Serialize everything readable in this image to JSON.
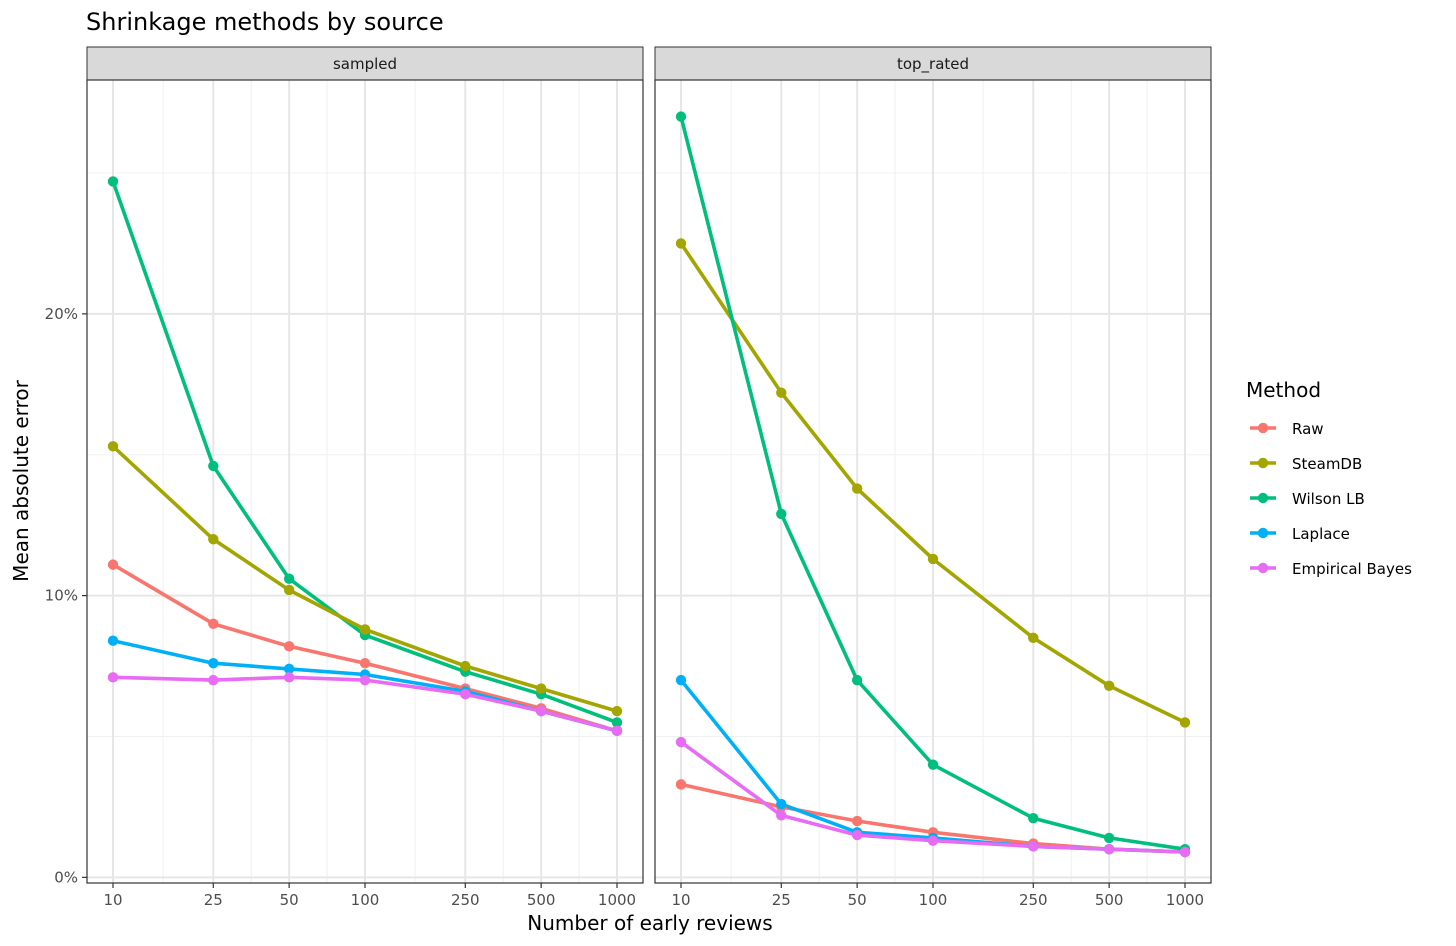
{
  "chart_data": {
    "type": "line",
    "title": "Shrinkage methods by source",
    "xlabel": "Number of early reviews",
    "ylabel": "Mean absolute error",
    "x_scale": "log10",
    "x_ticks": [
      10,
      25,
      50,
      100,
      250,
      500,
      1000
    ],
    "x_tick_labels": [
      "10",
      "25",
      "50",
      "100",
      "250",
      "500",
      "1000"
    ],
    "y_ticks": [
      0,
      0.1,
      0.2
    ],
    "y_tick_labels": [
      "0%",
      "10%",
      "20%"
    ],
    "ylim": [
      -0.002,
      0.283
    ],
    "grid": true,
    "legend": {
      "title": "Method",
      "position": "right"
    },
    "colors": {
      "Raw": "#F8766D",
      "SteamDB": "#A3A500",
      "Wilson LB": "#00BF7D",
      "Laplace": "#00B0F6",
      "Empirical Bayes": "#E76BF3"
    },
    "panels": [
      {
        "name": "sampled",
        "x": [
          10,
          25,
          50,
          100,
          250,
          500,
          1000
        ],
        "series": [
          {
            "name": "Wilson LB",
            "values": [
              0.247,
              0.146,
              0.106,
              0.086,
              0.073,
              0.065,
              0.055
            ]
          },
          {
            "name": "SteamDB",
            "values": [
              0.153,
              0.12,
              0.102,
              0.088,
              0.075,
              0.067,
              0.059
            ]
          },
          {
            "name": "Raw",
            "values": [
              0.111,
              0.09,
              0.082,
              0.076,
              0.067,
              0.06,
              0.052
            ]
          },
          {
            "name": "Laplace",
            "values": [
              0.084,
              0.076,
              0.074,
              0.072,
              0.066,
              0.059,
              0.052
            ]
          },
          {
            "name": "Empirical Bayes",
            "values": [
              0.071,
              0.07,
              0.071,
              0.07,
              0.065,
              0.059,
              0.052
            ]
          }
        ]
      },
      {
        "name": "top_rated",
        "x": [
          10,
          25,
          50,
          100,
          250,
          500,
          1000
        ],
        "series": [
          {
            "name": "SteamDB",
            "values": [
              0.225,
              0.172,
              0.138,
              0.113,
              0.085,
              0.068,
              0.055
            ]
          },
          {
            "name": "Wilson LB",
            "values": [
              0.27,
              0.129,
              0.07,
              0.04,
              0.021,
              0.014,
              0.01
            ]
          },
          {
            "name": "Raw",
            "values": [
              0.033,
              0.025,
              0.02,
              0.016,
              0.012,
              0.01,
              0.009
            ]
          },
          {
            "name": "Laplace",
            "values": [
              0.07,
              0.026,
              0.016,
              0.014,
              0.011,
              0.01,
              0.009
            ]
          },
          {
            "name": "Empirical Bayes",
            "values": [
              0.048,
              0.022,
              0.015,
              0.013,
              0.011,
              0.01,
              0.009
            ]
          }
        ]
      }
    ],
    "legend_order": [
      "Raw",
      "SteamDB",
      "Wilson LB",
      "Laplace",
      "Empirical Bayes"
    ]
  }
}
